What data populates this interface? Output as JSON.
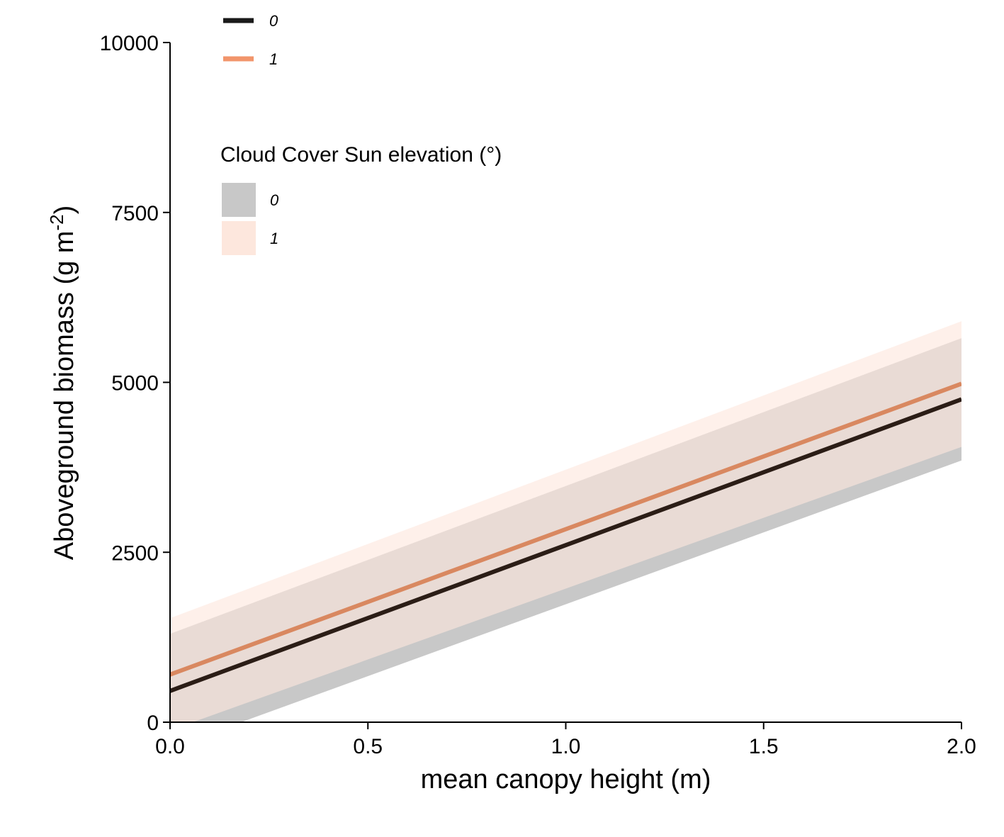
{
  "chart_data": {
    "type": "line",
    "xlabel": "mean canopy height (m)",
    "ylabel": "Aboveground biomass (g m",
    "ylabel_sup": "-2",
    "ylabel_end": ")",
    "xlim": [
      0,
      2.0
    ],
    "ylim": [
      0,
      10000
    ],
    "x_ticks": [
      0.0,
      0.5,
      1.0,
      1.5,
      2.0
    ],
    "x_tick_labels": [
      "0.0",
      "0.5",
      "1.0",
      "1.5",
      "2.0"
    ],
    "y_ticks": [
      0,
      2500,
      5000,
      7500,
      10000
    ],
    "y_tick_labels": [
      "0",
      "2500",
      "5000",
      "7500",
      "10000"
    ],
    "grid": false,
    "legend_placement": "top-left",
    "series": [
      {
        "name": "0",
        "color": "#1a1a1a",
        "line_color": "#2b1d16",
        "band_color": "#c8c8c8",
        "x": [
          0.0,
          2.0
        ],
        "values": [
          460,
          4750
        ],
        "lower": [
          -380,
          3850
        ],
        "upper": [
          1300,
          5650
        ]
      },
      {
        "name": "1",
        "color": "#f2956b",
        "line_color": "#d98860",
        "band_color": "#fde7dd",
        "x": [
          0.0,
          2.0
        ],
        "values": [
          700,
          4980
        ],
        "lower": [
          -120,
          4050
        ],
        "upper": [
          1530,
          5900
        ]
      }
    ],
    "legend_line": {
      "items": [
        "0",
        "1"
      ]
    },
    "legend_fill": {
      "title": "Cloud Cover Sun elevation (°)",
      "items": [
        "0",
        "1"
      ]
    }
  }
}
